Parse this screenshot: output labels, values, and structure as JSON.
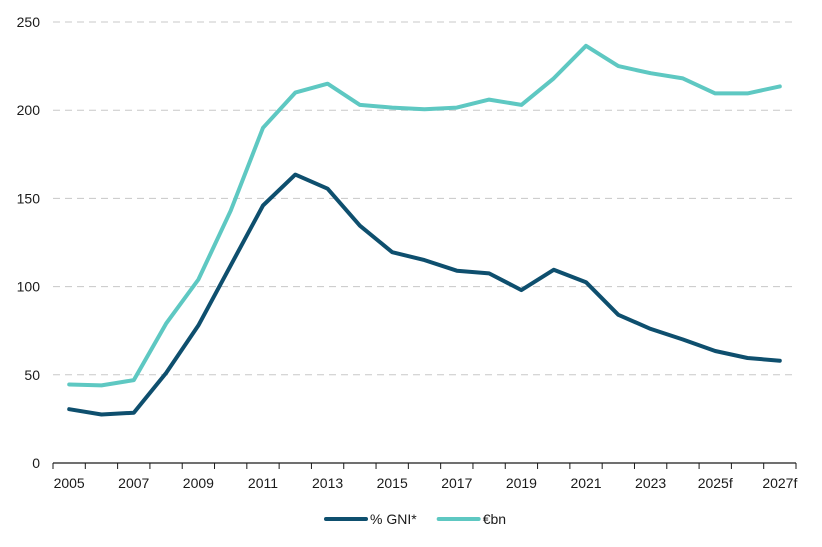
{
  "chart_data": {
    "type": "line",
    "title": "",
    "xlabel": "",
    "ylabel": "",
    "x": [
      "2005",
      "2006",
      "2007",
      "2008",
      "2009",
      "2010",
      "2011",
      "2012",
      "2013",
      "2014",
      "2015",
      "2016",
      "2017",
      "2018",
      "2019",
      "2020",
      "2021",
      "2022",
      "2023",
      "2024",
      "2025f",
      "2026f",
      "2027f"
    ],
    "x_tick_labels": [
      "2005",
      "2007",
      "2009",
      "2011",
      "2013",
      "2015",
      "2017",
      "2019",
      "2021",
      "2023",
      "2025f",
      "2027f"
    ],
    "ylim": [
      0,
      250
    ],
    "y_ticks": [
      0,
      50,
      100,
      150,
      200,
      250
    ],
    "grid": "horizontal dashed",
    "legend_position": "bottom-center",
    "series": [
      {
        "name": "% GNI*",
        "color": "#0e4f6e",
        "values": [
          30.5,
          27.5,
          28.5,
          51,
          78,
          112,
          146,
          163.5,
          155.5,
          134.5,
          119.5,
          115,
          109,
          107.5,
          98,
          109.5,
          102.5,
          84,
          76,
          70,
          63.5,
          59.5,
          58
        ]
      },
      {
        "name": "€bn",
        "color": "#5ec8c2",
        "values": [
          44.5,
          44,
          47,
          79,
          104,
          143,
          190,
          210,
          215,
          203,
          201.5,
          200.5,
          201.5,
          206,
          203,
          218,
          236.5,
          225,
          221,
          218,
          209.5,
          209.5,
          213.5
        ]
      }
    ]
  }
}
